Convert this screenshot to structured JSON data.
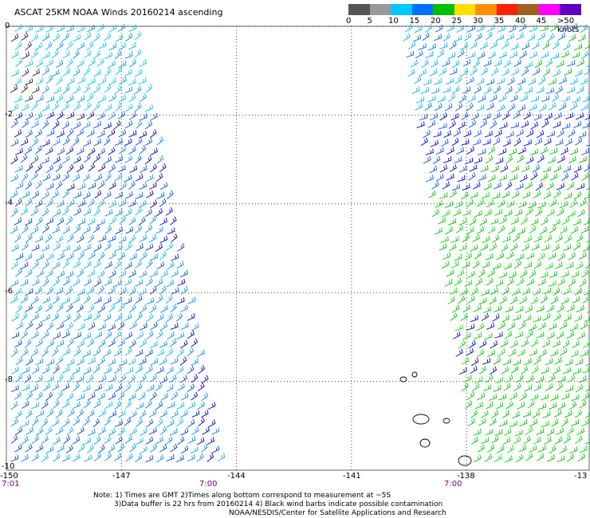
{
  "title": "ASCAT 25KM NOAA Winds 20160214 ascending",
  "legend": {
    "labels": [
      "0",
      "5",
      "10",
      "15",
      "20",
      "25",
      "30",
      "35",
      "40",
      "45",
      ">50 knots"
    ],
    "colors": [
      "#555555",
      "#999999",
      "#00c8ff",
      "#0070ff",
      "#00c000",
      "#ffe000",
      "#ff9000",
      "#ff2000",
      "#a06020",
      "#ff00ff",
      "#6000c0"
    ]
  },
  "axes": {
    "lat_labels": [
      "0",
      "-2",
      "-4",
      "-6",
      "-8",
      "-10"
    ],
    "lon_labels": [
      "-150",
      "-147",
      "-144",
      "-141",
      "-138",
      "-13"
    ],
    "lat_range": [
      0,
      -10
    ],
    "lon_range": [
      -150,
      -135
    ]
  },
  "times": {
    "left": "7:01",
    "mid": "7:00",
    "right": "7:00"
  },
  "notes": {
    "line1": "Note: 1) Times are GMT 2)Times along bottom correspond to measurement at ~5S",
    "line2": "3)Data buffer is 22 hrs from 20160214 4) Black wind barbs indicate possible contamination",
    "line3": "NOAA/NESDIS/Center for Satellite Applications and Research"
  },
  "swaths": [
    {
      "name": "west-swath",
      "dominant_colors": [
        "#00c8ff",
        "#0070ff",
        "#0000c8"
      ],
      "barb_color_note": "cyan to blue"
    },
    {
      "name": "east-swath",
      "dominant_colors": [
        "#00c8ff",
        "#0000ff",
        "#00c000"
      ],
      "barb_color_note": "blue and green"
    }
  ]
}
